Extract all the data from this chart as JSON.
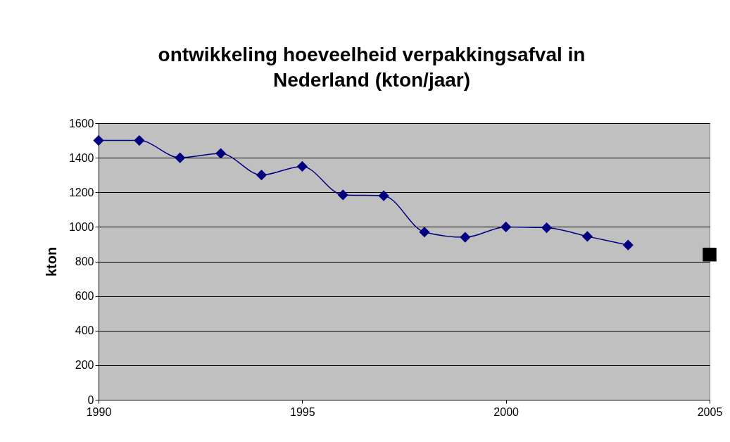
{
  "chart_data": {
    "type": "line",
    "title": "ontwikkeling hoeveelheid verpakkingsafval in Nederland (kton/jaar)",
    "ylabel": "kton",
    "x": [
      1990,
      1991,
      1992,
      1993,
      1994,
      1995,
      1996,
      1997,
      1998,
      1999,
      2000,
      2001,
      2002,
      2003
    ],
    "series": [
      {
        "color": "#000080",
        "marker": "diamond",
        "values": [
          1500,
          1500,
          1400,
          1425,
          1300,
          1350,
          1185,
          1180,
          970,
          940,
          1000,
          995,
          945,
          895
        ]
      },
      {
        "type": "scatter",
        "color": "#000000",
        "marker": "square",
        "x": [
          2005
        ],
        "values": [
          840
        ]
      }
    ],
    "xlim": [
      1990,
      2005
    ],
    "xticks": [
      1990,
      1995,
      2000,
      2005
    ],
    "ylim": [
      0,
      1600
    ],
    "yticks": [
      0,
      200,
      400,
      600,
      800,
      1000,
      1200,
      1400,
      1600
    ],
    "grid": "y"
  }
}
